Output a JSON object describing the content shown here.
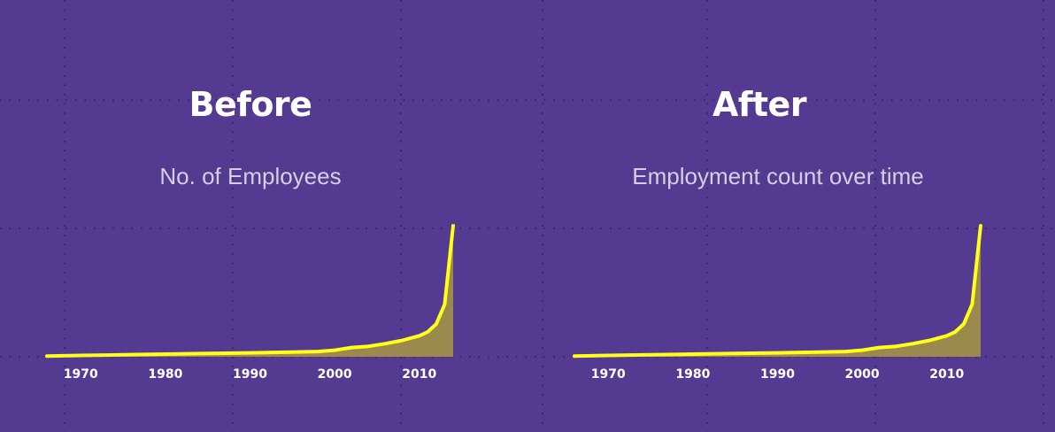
{
  "panels": [
    {
      "heading": "Before",
      "subtitle": "No. of Employees"
    },
    {
      "heading": "After",
      "subtitle": "Employment count over time"
    }
  ],
  "colors": {
    "background": "#553a91",
    "line": "#ffff1a",
    "area": "#9b8a4e",
    "grid_dots": "#2e1f56"
  },
  "chart_data": [
    {
      "type": "area",
      "title": "No. of Employees",
      "xlabel": "",
      "ylabel": "",
      "x": [
        1966,
        1970,
        1975,
        1980,
        1985,
        1990,
        1995,
        1998,
        2000,
        2002,
        2004,
        2006,
        2008,
        2010,
        2011,
        2012,
        2013,
        2014
      ],
      "values": [
        0.5,
        1,
        1.5,
        2,
        2.5,
        3,
        3.5,
        4,
        5,
        7,
        8,
        10,
        12.5,
        16,
        19,
        25,
        40,
        100
      ],
      "xticks": [
        "1970",
        "1980",
        "1990",
        "2000",
        "2010"
      ],
      "xlim": [
        1966,
        2014
      ],
      "ylim": [
        0,
        100
      ],
      "grid": true
    },
    {
      "type": "area",
      "title": "Employment count over time",
      "xlabel": "",
      "ylabel": "",
      "x": [
        1966,
        1970,
        1975,
        1980,
        1985,
        1990,
        1995,
        1998,
        2000,
        2002,
        2004,
        2006,
        2008,
        2010,
        2011,
        2012,
        2013,
        2014
      ],
      "values": [
        0.5,
        1,
        1.5,
        2,
        2.5,
        3,
        3.5,
        4,
        5,
        7,
        8,
        10,
        12.5,
        16,
        19,
        25,
        40,
        100
      ],
      "xticks": [
        "1970",
        "1980",
        "1990",
        "2000",
        "2010"
      ],
      "xlim": [
        1966,
        2014
      ],
      "ylim": [
        0,
        100
      ],
      "grid": true
    }
  ]
}
